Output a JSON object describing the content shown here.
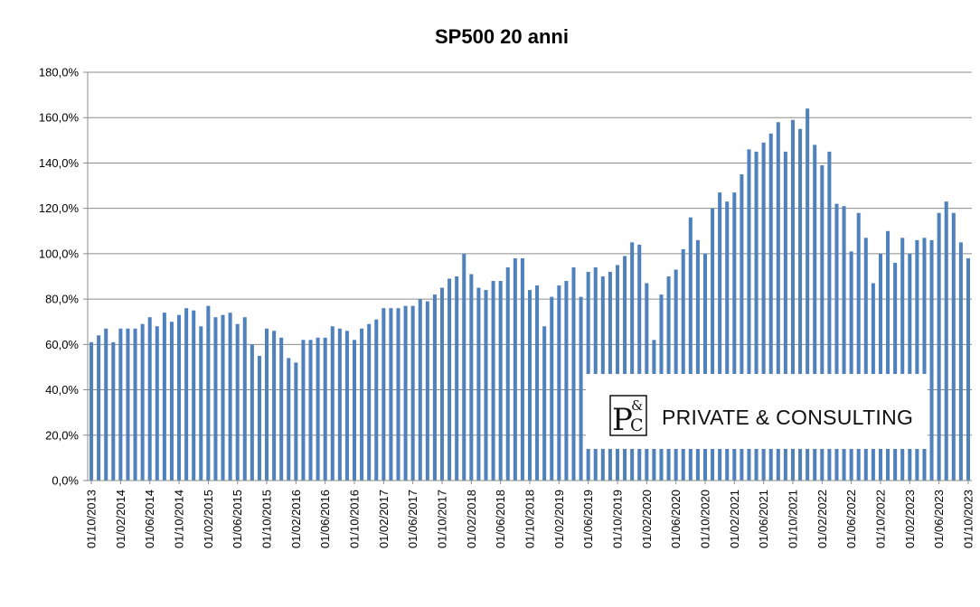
{
  "chart_data": {
    "type": "bar",
    "title": "SP500 20 anni",
    "xlabel": "",
    "ylabel": "",
    "ylim": [
      0,
      180
    ],
    "y_ticks": [
      "0,0%",
      "20,0%",
      "40,0%",
      "60,0%",
      "80,0%",
      "100,0%",
      "120,0%",
      "140,0%",
      "160,0%",
      "180,0%"
    ],
    "grid": true,
    "legend": "none",
    "bar_color": "#4f81bd",
    "x_tick_labels": [
      "01/10/2013",
      "01/02/2014",
      "01/06/2014",
      "01/10/2014",
      "01/02/2015",
      "01/06/2015",
      "01/10/2015",
      "01/02/2016",
      "01/06/2016",
      "01/10/2016",
      "01/02/2017",
      "01/06/2017",
      "01/10/2017",
      "01/02/2018",
      "01/06/2018",
      "01/10/2018",
      "01/02/2019",
      "01/06/2019",
      "01/10/2019",
      "01/02/2020",
      "01/06/2020",
      "01/10/2020",
      "01/02/2021",
      "01/06/2021",
      "01/10/2021",
      "01/02/2022",
      "01/06/2022",
      "01/10/2022",
      "01/02/2023",
      "01/06/2023",
      "01/10/2023"
    ],
    "categories": [
      "10/2013",
      "11/2013",
      "12/2013",
      "01/2014",
      "02/2014",
      "03/2014",
      "04/2014",
      "05/2014",
      "06/2014",
      "07/2014",
      "08/2014",
      "09/2014",
      "10/2014",
      "11/2014",
      "12/2014",
      "01/2015",
      "02/2015",
      "03/2015",
      "04/2015",
      "05/2015",
      "06/2015",
      "07/2015",
      "08/2015",
      "09/2015",
      "10/2015",
      "11/2015",
      "12/2015",
      "01/2016",
      "02/2016",
      "03/2016",
      "04/2016",
      "05/2016",
      "06/2016",
      "07/2016",
      "08/2016",
      "09/2016",
      "10/2016",
      "11/2016",
      "12/2016",
      "01/2017",
      "02/2017",
      "03/2017",
      "04/2017",
      "05/2017",
      "06/2017",
      "07/2017",
      "08/2017",
      "09/2017",
      "10/2017",
      "11/2017",
      "12/2017",
      "01/2018",
      "02/2018",
      "03/2018",
      "04/2018",
      "05/2018",
      "06/2018",
      "07/2018",
      "08/2018",
      "09/2018",
      "10/2018",
      "11/2018",
      "12/2018",
      "01/2019",
      "02/2019",
      "03/2019",
      "04/2019",
      "05/2019",
      "06/2019",
      "07/2019",
      "08/2019",
      "09/2019",
      "10/2019",
      "11/2019",
      "12/2019",
      "01/2020",
      "02/2020",
      "03/2020",
      "04/2020",
      "05/2020",
      "06/2020",
      "07/2020",
      "08/2020",
      "09/2020",
      "10/2020",
      "11/2020",
      "12/2020",
      "01/2021",
      "02/2021",
      "03/2021",
      "04/2021",
      "05/2021",
      "06/2021",
      "07/2021",
      "08/2021",
      "09/2021",
      "10/2021",
      "11/2021",
      "12/2021",
      "01/2022",
      "02/2022",
      "03/2022",
      "04/2022",
      "05/2022",
      "06/2022",
      "07/2022",
      "08/2022",
      "09/2022",
      "10/2022",
      "11/2022",
      "12/2022",
      "01/2023",
      "02/2023",
      "03/2023",
      "04/2023",
      "05/2023",
      "06/2023",
      "07/2023",
      "08/2023",
      "09/2023",
      "10/2023"
    ],
    "values": [
      61,
      64,
      67,
      61,
      67,
      67,
      67,
      69,
      72,
      68,
      74,
      70,
      73,
      76,
      75,
      68,
      77,
      72,
      73,
      74,
      69,
      72,
      60,
      55,
      67,
      66,
      63,
      54,
      52,
      62,
      62,
      63,
      63,
      68,
      67,
      66,
      62,
      67,
      69,
      71,
      76,
      76,
      76,
      77,
      77,
      80,
      79,
      82,
      85,
      89,
      90,
      100,
      91,
      85,
      84,
      88,
      88,
      94,
      98,
      98,
      84,
      86,
      68,
      81,
      86,
      88,
      94,
      81,
      92,
      94,
      90,
      92,
      95,
      99,
      105,
      104,
      87,
      62,
      82,
      90,
      93,
      102,
      116,
      106,
      100,
      120,
      127,
      123,
      127,
      135,
      146,
      145,
      149,
      153,
      158,
      145,
      159,
      155,
      164,
      148,
      139,
      145,
      122,
      121,
      101,
      118,
      107,
      87,
      100,
      110,
      96,
      107,
      100,
      106,
      107,
      106,
      118,
      123,
      118,
      105,
      98
    ]
  },
  "logo": {
    "monogram_p": "P",
    "monogram_amp": "&",
    "monogram_c": "C",
    "text": "PRIVATE & CONSULTING"
  }
}
